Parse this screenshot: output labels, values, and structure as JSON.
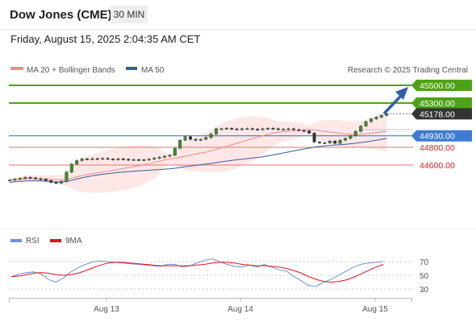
{
  "header": {
    "title": "Dow Jones (CME)",
    "timeframe": "30 MIN"
  },
  "timestamp": "Friday, August 15, 2025 2:04:35 AM CET",
  "legend": {
    "ma20": "MA 20 + Bollinger Bands",
    "ma50": "MA 50",
    "rsi": "RSI",
    "ma9": "9MA"
  },
  "credit": "Research © 2025 Trading Central",
  "colors": {
    "resistance": "#4ea21a",
    "support": "#f08a8a",
    "pivot": "#3d7bd4",
    "last": "#333333",
    "arrow": "#2f5fa8",
    "rsi": "#6f8fd8",
    "ma9": "#e0141e"
  },
  "chart_data": {
    "type": "line",
    "x_ticks": [
      "Aug 13",
      "Aug 14",
      "Aug 15"
    ],
    "ylim": [
      44300,
      45650
    ],
    "levels": {
      "resistance": [
        45500.0,
        45300.0
      ],
      "last": 45178.0,
      "pivot": 44930.0,
      "support": [
        44800.0,
        44600.0
      ]
    },
    "level_labels": [
      "45500.00",
      "45300.00",
      "45178.00",
      "44930.00",
      "44800.00",
      "44600.00"
    ],
    "price_series": [
      44430,
      44440,
      44450,
      44460,
      44455,
      44445,
      44440,
      44425,
      44405,
      44395,
      44415,
      44520,
      44610,
      44650,
      44670,
      44665,
      44672,
      44670,
      44675,
      44668,
      44662,
      44670,
      44665,
      44658,
      44662,
      44655,
      44660,
      44666,
      44678,
      44688,
      44700,
      44710,
      44790,
      44880,
      44920,
      44890,
      44880,
      44890,
      44910,
      44950,
      45010,
      45010,
      45015,
      45008,
      45003,
      45010,
      45012,
      45005,
      45000,
      45010,
      45015,
      45010,
      45003,
      45005,
      45010,
      45000,
      44990,
      44985,
      44960,
      44860,
      44850,
      44850,
      44870,
      44845,
      44880,
      44900,
      44930,
      44980,
      45040,
      45090,
      45120,
      45140,
      45160,
      45178
    ],
    "rsi": {
      "ticks": [
        70,
        50,
        30
      ],
      "ylim": [
        20,
        85
      ],
      "rsi_series": [
        48,
        52,
        54,
        55,
        52,
        44,
        40,
        46,
        55,
        61,
        66,
        70,
        71,
        70,
        69,
        68,
        67,
        66,
        65,
        64,
        63,
        66,
        66,
        62,
        64,
        68,
        72,
        74,
        70,
        66,
        63,
        62,
        65,
        62,
        66,
        62,
        58,
        56,
        48,
        42,
        35,
        34,
        40,
        44,
        50,
        56,
        62,
        66,
        68,
        69,
        70
      ],
      "ma9_series": [
        48,
        49,
        51,
        53,
        54,
        53,
        51,
        50,
        51,
        53,
        57,
        61,
        65,
        68,
        69,
        69,
        68,
        67,
        66,
        65,
        64,
        64,
        64,
        64,
        64,
        65,
        66,
        68,
        69,
        69,
        68,
        66,
        65,
        64,
        64,
        63,
        62,
        60,
        57,
        53,
        48,
        44,
        41,
        40,
        41,
        43,
        47,
        52,
        57,
        62,
        66
      ]
    }
  }
}
